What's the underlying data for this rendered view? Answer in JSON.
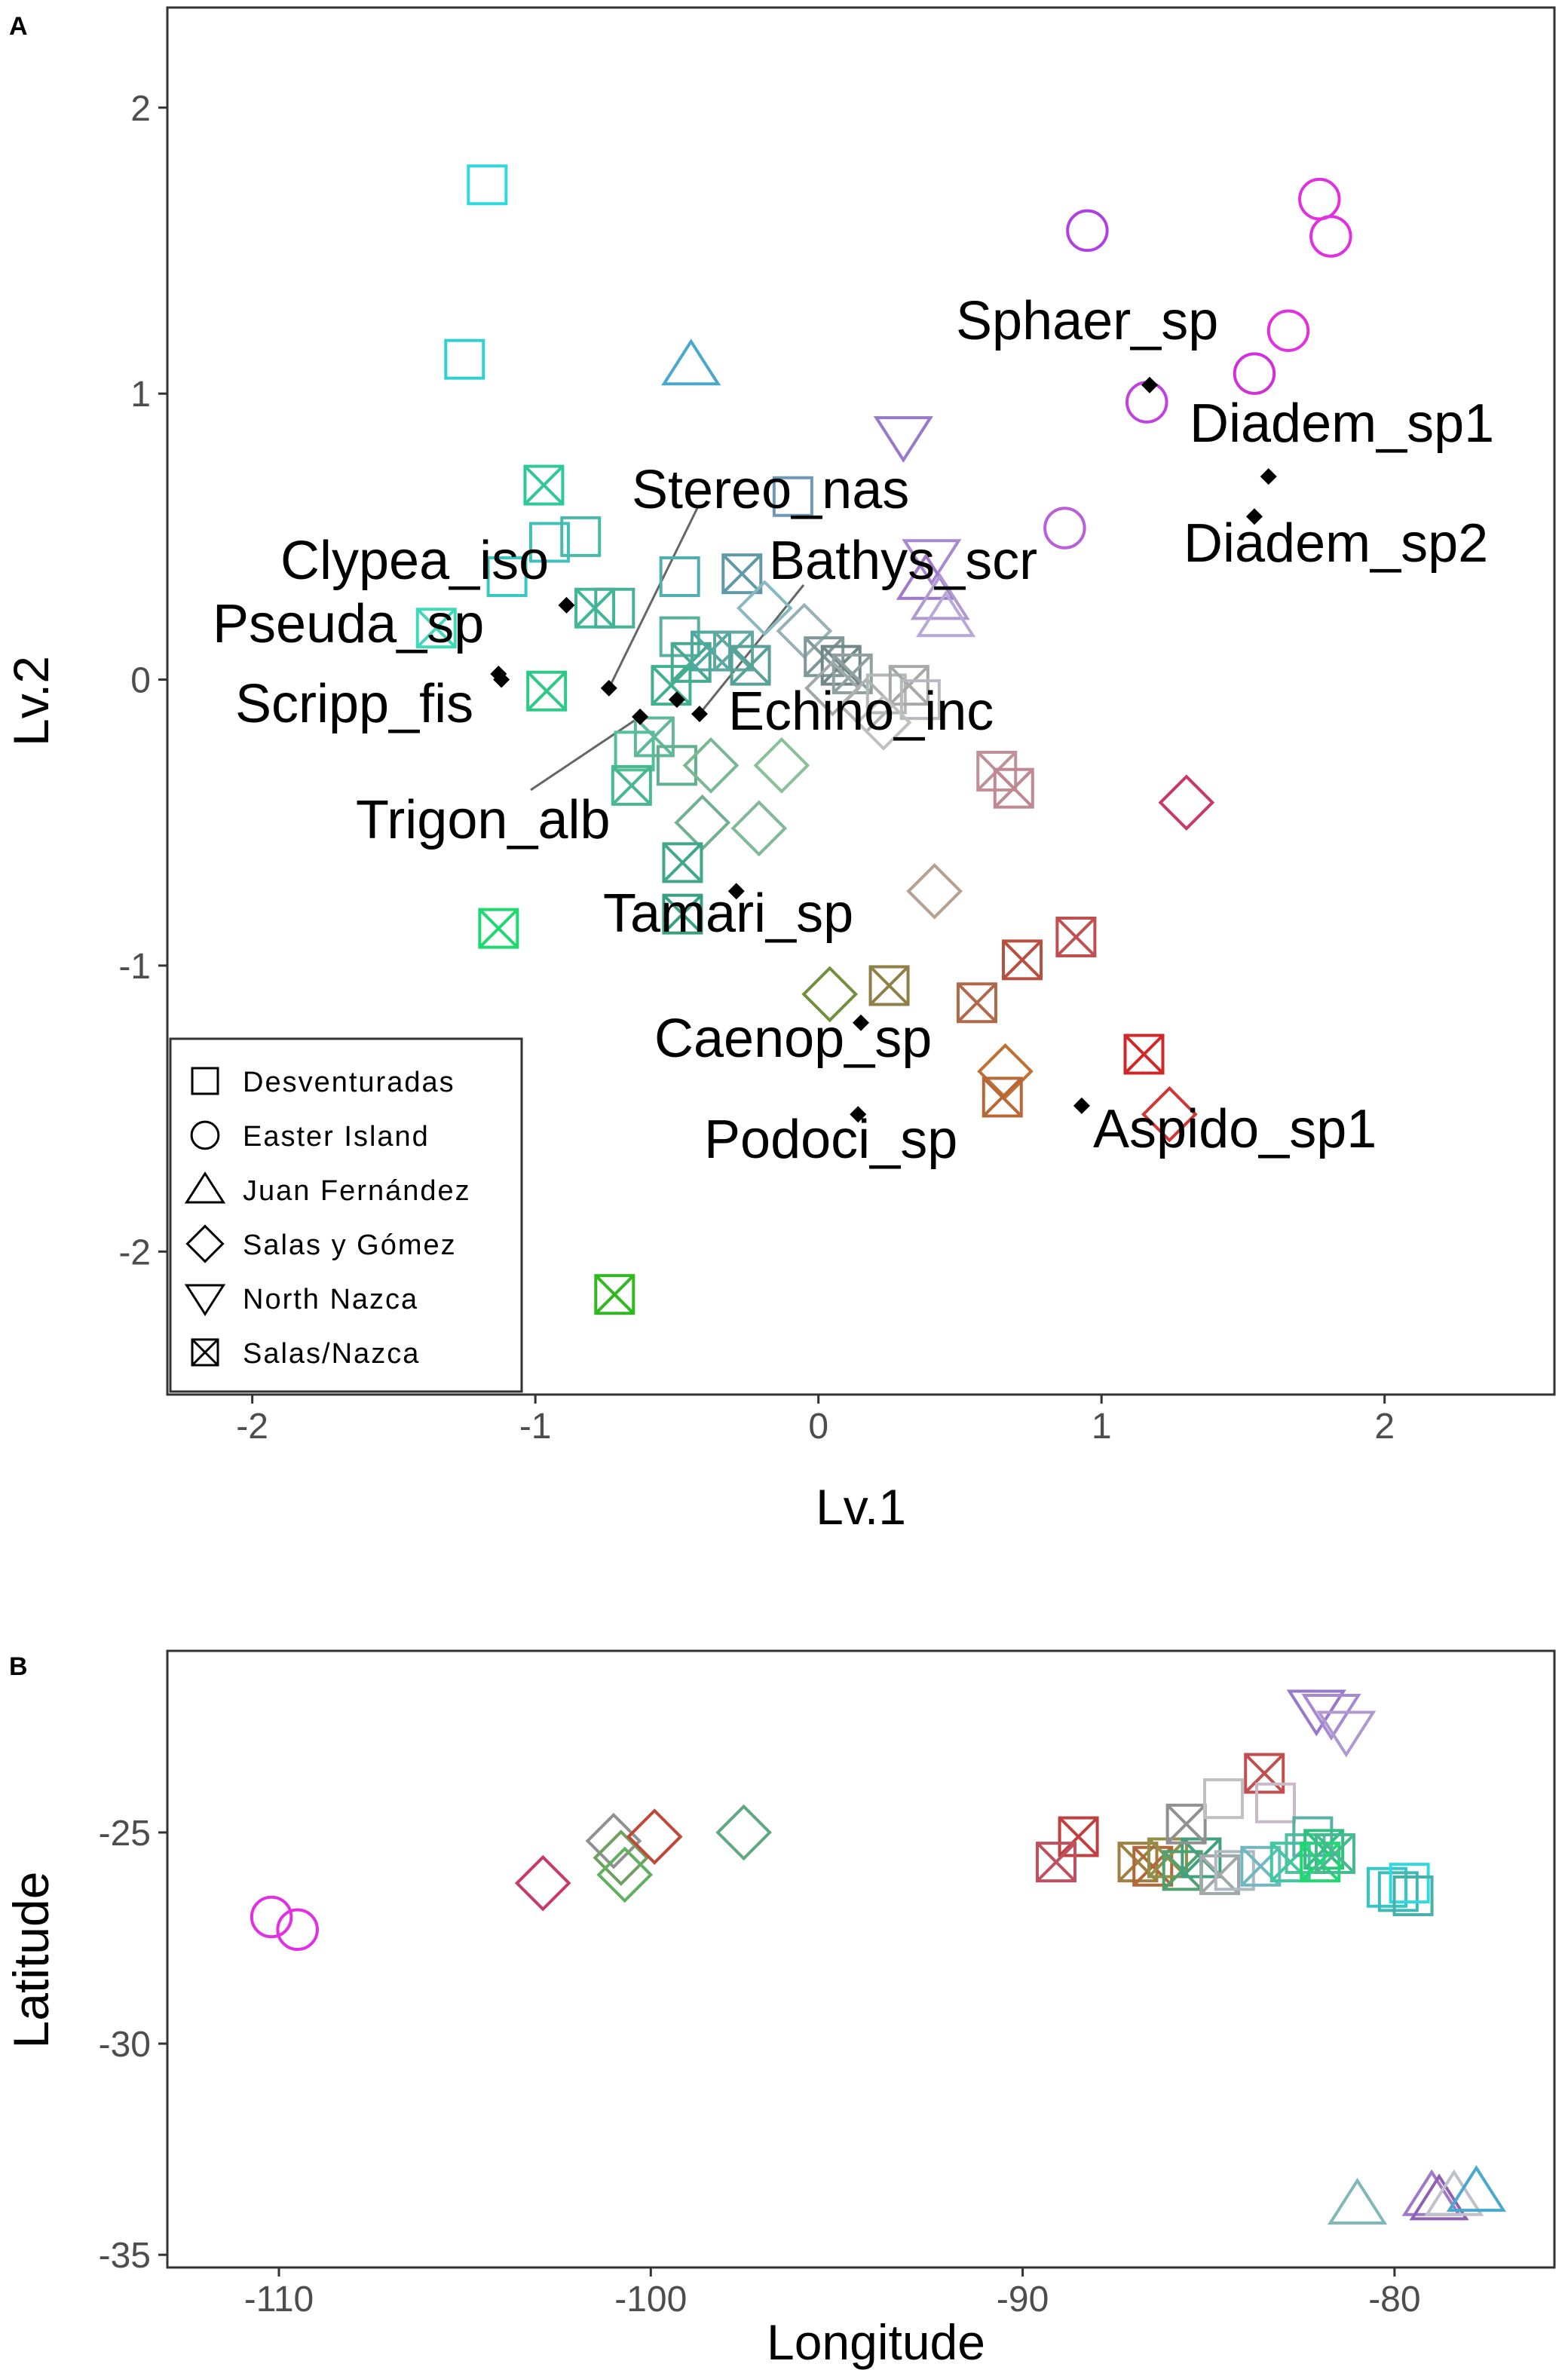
{
  "chart_data": [
    {
      "panel": "A",
      "type": "scatter",
      "xlabel": "Lv.1",
      "ylabel": "Lv.2",
      "xlim": [
        -2.3,
        2.6
      ],
      "ylim": [
        -2.5,
        2.35
      ],
      "xticks": [
        -2,
        -1,
        0,
        1,
        2
      ],
      "xtick_labels": [
        "-2",
        "-1",
        "0",
        "1",
        "2"
      ],
      "yticks": [
        -2,
        -1,
        0,
        1,
        2
      ],
      "ytick_labels": [
        "-2",
        "-1",
        "0",
        "1",
        "2"
      ],
      "legend": {
        "position": "bottom-left",
        "entries": [
          {
            "shape": "square",
            "label": "Desventuradas"
          },
          {
            "shape": "circle",
            "label": "Easter Island"
          },
          {
            "shape": "triangle",
            "label": "Juan Fernández"
          },
          {
            "shape": "diamond",
            "label": "Salas y Gómez"
          },
          {
            "shape": "triangle-down",
            "label": "North Nazca"
          },
          {
            "shape": "square-x",
            "label": "Salas/Nazca"
          }
        ]
      },
      "sites": [
        {
          "x": -1.17,
          "y": 1.73,
          "shape": "square",
          "color": "#30d8e0"
        },
        {
          "x": -1.25,
          "y": 1.12,
          "shape": "square",
          "color": "#30d0d0"
        },
        {
          "x": -0.45,
          "y": 1.1,
          "shape": "triangle",
          "color": "#4aa8cc"
        },
        {
          "x": 0.95,
          "y": 1.57,
          "shape": "circle",
          "color": "#b040e0"
        },
        {
          "x": 1.77,
          "y": 1.68,
          "shape": "circle",
          "color": "#e030e0"
        },
        {
          "x": 1.81,
          "y": 1.55,
          "shape": "circle",
          "color": "#e030e0"
        },
        {
          "x": 1.66,
          "y": 1.22,
          "shape": "circle",
          "color": "#e030e0"
        },
        {
          "x": 1.54,
          "y": 1.07,
          "shape": "circle",
          "color": "#d030d8"
        },
        {
          "x": 1.16,
          "y": 0.97,
          "shape": "circle",
          "color": "#c040e0"
        },
        {
          "x": 0.87,
          "y": 0.53,
          "shape": "circle",
          "color": "#b860d8"
        },
        {
          "x": 0.3,
          "y": 0.85,
          "shape": "triangle-down",
          "color": "#9878c8"
        },
        {
          "x": 0.4,
          "y": 0.42,
          "shape": "triangle-down",
          "color": "#a888d0"
        },
        {
          "x": 0.38,
          "y": 0.35,
          "shape": "triangle",
          "color": "#a078c8"
        },
        {
          "x": 0.43,
          "y": 0.28,
          "shape": "triangle",
          "color": "#b098d0"
        },
        {
          "x": 0.45,
          "y": 0.22,
          "shape": "triangle",
          "color": "#b8a8d8"
        },
        {
          "x": -0.97,
          "y": 0.68,
          "shape": "square-x",
          "color": "#30c898"
        },
        {
          "x": -0.09,
          "y": 0.64,
          "shape": "square",
          "color": "#7098b8"
        },
        {
          "x": -0.95,
          "y": 0.48,
          "shape": "square",
          "color": "#40c0b8"
        },
        {
          "x": -0.84,
          "y": 0.5,
          "shape": "square",
          "color": "#48b8a8"
        },
        {
          "x": -1.1,
          "y": 0.36,
          "shape": "square",
          "color": "#38c8c0"
        },
        {
          "x": -0.49,
          "y": 0.36,
          "shape": "square",
          "color": "#50b0b0"
        },
        {
          "x": -0.27,
          "y": 0.37,
          "shape": "square-x",
          "color": "#6098a8"
        },
        {
          "x": -0.79,
          "y": 0.25,
          "shape": "square-x",
          "color": "#40b898"
        },
        {
          "x": -0.72,
          "y": 0.25,
          "shape": "square",
          "color": "#48b098"
        },
        {
          "x": -1.35,
          "y": 0.18,
          "shape": "square-x",
          "color": "#40d8b8"
        },
        {
          "x": -0.96,
          "y": -0.04,
          "shape": "square-x",
          "color": "#30c888"
        },
        {
          "x": -0.49,
          "y": 0.15,
          "shape": "square",
          "color": "#58b0a0"
        },
        {
          "x": -0.45,
          "y": 0.06,
          "shape": "square-x",
          "color": "#48a890"
        },
        {
          "x": -0.38,
          "y": 0.1,
          "shape": "square-x",
          "color": "#50a8a0"
        },
        {
          "x": -0.3,
          "y": 0.1,
          "shape": "square-x",
          "color": "#60a8a0"
        },
        {
          "x": -0.24,
          "y": 0.05,
          "shape": "square-x",
          "color": "#58a098"
        },
        {
          "x": -0.52,
          "y": -0.02,
          "shape": "square-x",
          "color": "#40b090"
        },
        {
          "x": -0.19,
          "y": 0.25,
          "shape": "diamond",
          "color": "#8ab8c0"
        },
        {
          "x": -0.05,
          "y": 0.17,
          "shape": "diamond",
          "color": "#98b0b8"
        },
        {
          "x": 0.02,
          "y": 0.08,
          "shape": "square-x",
          "color": "#809898"
        },
        {
          "x": 0.08,
          "y": 0.05,
          "shape": "square-x",
          "color": "#708888"
        },
        {
          "x": 0.12,
          "y": 0.02,
          "shape": "square-x",
          "color": "#90a0a0"
        },
        {
          "x": 0.05,
          "y": -0.03,
          "shape": "diamond",
          "color": "#a0a8a8"
        },
        {
          "x": 0.17,
          "y": -0.09,
          "shape": "diamond",
          "color": "#b0b0b0"
        },
        {
          "x": 0.24,
          "y": -0.05,
          "shape": "square",
          "color": "#b0b8b8"
        },
        {
          "x": 0.32,
          "y": -0.02,
          "shape": "square-x",
          "color": "#a8a8a8"
        },
        {
          "x": 0.36,
          "y": -0.07,
          "shape": "square",
          "color": "#b8b8c0"
        },
        {
          "x": 0.23,
          "y": -0.15,
          "shape": "diamond",
          "color": "#c0c0c0"
        },
        {
          "x": -0.65,
          "y": -0.25,
          "shape": "square",
          "color": "#50c098"
        },
        {
          "x": -0.58,
          "y": -0.2,
          "shape": "square-x",
          "color": "#60b898"
        },
        {
          "x": -0.66,
          "y": -0.37,
          "shape": "square-x",
          "color": "#48b890"
        },
        {
          "x": -0.5,
          "y": -0.3,
          "shape": "square",
          "color": "#60b090"
        },
        {
          "x": -0.38,
          "y": -0.3,
          "shape": "diamond",
          "color": "#78b890"
        },
        {
          "x": -0.13,
          "y": -0.3,
          "shape": "diamond",
          "color": "#88c098"
        },
        {
          "x": -0.41,
          "y": -0.5,
          "shape": "diamond",
          "color": "#70b090"
        },
        {
          "x": -0.21,
          "y": -0.52,
          "shape": "diamond",
          "color": "#80b898"
        },
        {
          "x": -0.48,
          "y": -0.64,
          "shape": "square-x",
          "color": "#40a888"
        },
        {
          "x": -0.48,
          "y": -0.82,
          "shape": "square-x",
          "color": "#38a080"
        },
        {
          "x": -1.13,
          "y": -0.87,
          "shape": "square-x",
          "color": "#20d870"
        },
        {
          "x": 0.63,
          "y": -0.32,
          "shape": "square-x",
          "color": "#c09098"
        },
        {
          "x": 0.69,
          "y": -0.38,
          "shape": "square-x",
          "color": "#c08890"
        },
        {
          "x": 1.3,
          "y": -0.43,
          "shape": "diamond",
          "color": "#c83868"
        },
        {
          "x": 0.41,
          "y": -0.74,
          "shape": "diamond",
          "color": "#b8a090"
        },
        {
          "x": 0.91,
          "y": -0.9,
          "shape": "square-x",
          "color": "#c05050"
        },
        {
          "x": 0.72,
          "y": -0.98,
          "shape": "square-x",
          "color": "#b85040"
        },
        {
          "x": 0.56,
          "y": -1.13,
          "shape": "square-x",
          "color": "#b06848"
        },
        {
          "x": 0.25,
          "y": -1.07,
          "shape": "square-x",
          "color": "#908048"
        },
        {
          "x": 0.04,
          "y": -1.1,
          "shape": "diamond",
          "color": "#709040"
        },
        {
          "x": 0.66,
          "y": -1.37,
          "shape": "diamond",
          "color": "#c07030"
        },
        {
          "x": 0.65,
          "y": -1.46,
          "shape": "square-x",
          "color": "#b86838"
        },
        {
          "x": 1.15,
          "y": -1.31,
          "shape": "square-x",
          "color": "#d02828"
        },
        {
          "x": 1.24,
          "y": -1.52,
          "shape": "diamond",
          "color": "#d03838"
        },
        {
          "x": -0.72,
          "y": -2.15,
          "shape": "square-x",
          "color": "#30b820"
        }
      ],
      "species": [
        {
          "name": "Sphaer_sp",
          "x": 1.17,
          "y": 1.03
        },
        {
          "name": "Diadem_sp1",
          "x": 1.59,
          "y": 0.71
        },
        {
          "name": "Diadem_sp2",
          "x": 1.54,
          "y": 0.57
        },
        {
          "name": "Stereo_nas",
          "x": -0.74,
          "y": -0.03
        },
        {
          "name": "Clypea_iso",
          "x": -0.89,
          "y": 0.26
        },
        {
          "name": "Bathys_scr",
          "x": -0.42,
          "y": -0.12
        },
        {
          "name": "Pseuda_sp",
          "x": -1.13,
          "y": 0.02
        },
        {
          "name": "Scripp_fis",
          "x": -1.12,
          "y": 0.0
        },
        {
          "name": "Echino_inc",
          "x": -0.5,
          "y": -0.07
        },
        {
          "name": "Trigon_alb",
          "x": -0.63,
          "y": -0.13
        },
        {
          "name": "Tamari_sp",
          "x": -0.29,
          "y": -0.74
        },
        {
          "name": "Caenop_sp",
          "x": 0.15,
          "y": -1.2
        },
        {
          "name": "Podoci_sp",
          "x": 0.14,
          "y": -1.52
        },
        {
          "name": "Aspido_sp1",
          "x": 0.93,
          "y": -1.49
        }
      ]
    },
    {
      "panel": "B",
      "type": "scatter",
      "xlabel": "Longitude",
      "ylabel": "Latitude",
      "xlim": [
        -113,
        -75.7
      ],
      "ylim": [
        -35.3,
        -20.7
      ],
      "xticks": [
        -110,
        -100,
        -90,
        -80
      ],
      "xtick_labels": [
        "-110",
        "-100",
        "-90",
        "-80"
      ],
      "yticks": [
        -35,
        -30,
        -25
      ],
      "ytick_labels": [
        "-35",
        "-30",
        "-25"
      ],
      "sites": [
        {
          "x": -110.2,
          "y": -27.0,
          "shape": "circle",
          "color": "#e030e0"
        },
        {
          "x": -109.5,
          "y": -27.3,
          "shape": "circle",
          "color": "#e030e0"
        },
        {
          "x": -102.9,
          "y": -26.2,
          "shape": "diamond",
          "color": "#c83868"
        },
        {
          "x": -101.0,
          "y": -25.2,
          "shape": "diamond",
          "color": "#909090"
        },
        {
          "x": -100.8,
          "y": -25.6,
          "shape": "diamond",
          "color": "#70a060"
        },
        {
          "x": -100.7,
          "y": -26.0,
          "shape": "diamond",
          "color": "#60b060"
        },
        {
          "x": -99.9,
          "y": -25.1,
          "shape": "diamond",
          "color": "#c04838"
        },
        {
          "x": -97.5,
          "y": -25.0,
          "shape": "diamond",
          "color": "#60a880"
        },
        {
          "x": -88.5,
          "y": -25.1,
          "shape": "square-x",
          "color": "#c04040"
        },
        {
          "x": -89.1,
          "y": -25.7,
          "shape": "square-x",
          "color": "#c05060"
        },
        {
          "x": -86.9,
          "y": -25.7,
          "shape": "square-x",
          "color": "#a08040"
        },
        {
          "x": -86.5,
          "y": -25.8,
          "shape": "square-x",
          "color": "#b06838"
        },
        {
          "x": -86.1,
          "y": -25.6,
          "shape": "square-x",
          "color": "#909048"
        },
        {
          "x": -85.7,
          "y": -25.9,
          "shape": "square-x",
          "color": "#50a070"
        },
        {
          "x": -85.2,
          "y": -25.6,
          "shape": "square-x",
          "color": "#40a080"
        },
        {
          "x": -85.6,
          "y": -24.8,
          "shape": "square-x",
          "color": "#909090"
        },
        {
          "x": -84.6,
          "y": -24.2,
          "shape": "square",
          "color": "#c0c0c0"
        },
        {
          "x": -84.7,
          "y": -26.0,
          "shape": "square-x",
          "color": "#a0a8a8"
        },
        {
          "x": -84.3,
          "y": -25.9,
          "shape": "square",
          "color": "#b0b8c0"
        },
        {
          "x": -83.6,
          "y": -25.8,
          "shape": "square-x",
          "color": "#70b8c0"
        },
        {
          "x": -83.5,
          "y": -23.6,
          "shape": "square-x",
          "color": "#c05050"
        },
        {
          "x": -83.2,
          "y": -24.3,
          "shape": "square",
          "color": "#c8b8c8"
        },
        {
          "x": -82.8,
          "y": -25.7,
          "shape": "square-x",
          "color": "#40c8a0"
        },
        {
          "x": -82.4,
          "y": -25.5,
          "shape": "square",
          "color": "#50c0a0"
        },
        {
          "x": -82.2,
          "y": -25.1,
          "shape": "square",
          "color": "#58b0a8"
        },
        {
          "x": -81.9,
          "y": -25.4,
          "shape": "square-x",
          "color": "#30c080"
        },
        {
          "x": -82.0,
          "y": -25.7,
          "shape": "square-x",
          "color": "#20d870"
        },
        {
          "x": -81.6,
          "y": -25.5,
          "shape": "square-x",
          "color": "#48b890"
        },
        {
          "x": -82.1,
          "y": -22.1,
          "shape": "triangle-down",
          "color": "#9878c8"
        },
        {
          "x": -81.7,
          "y": -22.2,
          "shape": "triangle-down",
          "color": "#a888d0"
        },
        {
          "x": -81.3,
          "y": -22.6,
          "shape": "triangle-down",
          "color": "#b098d0"
        },
        {
          "x": -80.2,
          "y": -26.3,
          "shape": "square",
          "color": "#30c8c8"
        },
        {
          "x": -79.9,
          "y": -26.4,
          "shape": "square",
          "color": "#40b8b8"
        },
        {
          "x": -79.6,
          "y": -26.2,
          "shape": "square",
          "color": "#30d8e0"
        },
        {
          "x": -79.5,
          "y": -26.5,
          "shape": "square",
          "color": "#48b0a8"
        },
        {
          "x": -81.0,
          "y": -33.8,
          "shape": "triangle",
          "color": "#80b8b8"
        },
        {
          "x": -79.0,
          "y": -33.6,
          "shape": "triangle",
          "color": "#a078c8"
        },
        {
          "x": -78.8,
          "y": -33.7,
          "shape": "triangle",
          "color": "#9060b0"
        },
        {
          "x": -78.4,
          "y": -33.6,
          "shape": "triangle",
          "color": "#c0c0c8"
        },
        {
          "x": -77.8,
          "y": -33.5,
          "shape": "triangle",
          "color": "#4aa8cc"
        }
      ]
    }
  ]
}
